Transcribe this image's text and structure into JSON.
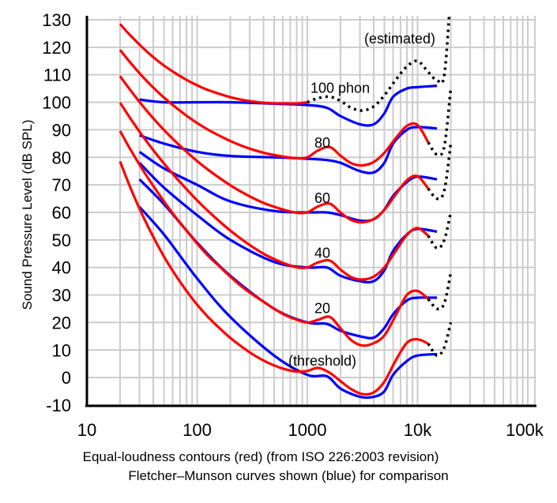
{
  "chart_data": {
    "type": "line",
    "caption_line1": "Equal-loudness contours (red) (from ISO 226:2003 revision)",
    "caption_line2": "Fletcher–Munson curves shown (blue) for comparison",
    "ylabel": "Sound Pressure Level (dB SPL)",
    "xscale": "log",
    "xlim": [
      10,
      115000
    ],
    "ylim": [
      -10,
      130
    ],
    "grid": true,
    "x_ticks": [
      {
        "value": 10,
        "label": "10"
      },
      {
        "value": 100,
        "label": "100"
      },
      {
        "value": 1000,
        "label": "1000"
      },
      {
        "value": 10000,
        "label": "10k"
      },
      {
        "value": 100000,
        "label": "100k"
      }
    ],
    "y_ticks": [
      "-10",
      "0",
      "10",
      "20",
      "30",
      "40",
      "50",
      "60",
      "70",
      "80",
      "90",
      "100",
      "110",
      "120",
      "130"
    ],
    "colors": {
      "iso": "#ff0000",
      "fletcher_munson": "#0000ff",
      "estimated": "#000000",
      "grid": "#cccccc"
    },
    "annotations": {
      "estimated": "(estimated)",
      "threshold": "(threshold)"
    },
    "iso_frequencies": [
      20,
      25,
      31.5,
      40,
      50,
      63,
      80,
      100,
      125,
      160,
      200,
      250,
      315,
      400,
      500,
      630,
      800,
      1000,
      1250,
      1600,
      2000,
      2500,
      3150,
      4000,
      5000,
      6300,
      8000,
      10000,
      12500
    ],
    "iso_series": [
      {
        "label": "",
        "values": [
          78.5,
          68.7,
          59.5,
          51.1,
          44.0,
          37.5,
          31.5,
          26.5,
          22.1,
          17.9,
          14.4,
          11.4,
          8.6,
          6.2,
          4.4,
          3.0,
          2.2,
          2.4,
          3.5,
          1.7,
          -1.3,
          -4.2,
          -6.0,
          -5.4,
          -1.5,
          6.0,
          12.6,
          13.9,
          12.3
        ],
        "tail": [
          8,
          11,
          20
        ]
      },
      {
        "label": "20",
        "values": [
          89.58,
          82.65,
          75.98,
          69.62,
          64.02,
          58.55,
          53.47,
          48.65,
          44.35,
          40.32,
          36.67,
          33.29,
          30.27,
          27.56,
          24.97,
          22.66,
          21.01,
          20.0,
          20.95,
          22.01,
          17.88,
          13.61,
          11.63,
          12.48,
          15.28,
          22.37,
          30.01,
          31.48,
          28.51
        ],
        "tail": [
          25,
          27,
          38
        ]
      },
      {
        "label": "40",
        "values": [
          99.85,
          93.94,
          88.17,
          82.63,
          77.78,
          73.08,
          68.48,
          64.37,
          60.59,
          56.7,
          53.41,
          50.4,
          47.58,
          44.98,
          43.05,
          41.34,
          40.06,
          40.01,
          41.82,
          42.51,
          39.23,
          36.51,
          35.61,
          36.65,
          40.01,
          45.83,
          51.8,
          54.28,
          51.49
        ],
        "tail": [
          47,
          50,
          60
        ]
      },
      {
        "label": "60",
        "values": [
          109.51,
          104.23,
          99.08,
          94.18,
          89.96,
          85.94,
          82.05,
          78.65,
          75.56,
          72.47,
          69.86,
          67.53,
          65.39,
          63.45,
          62.05,
          60.81,
          59.89,
          60.01,
          62.15,
          63.19,
          59.96,
          57.26,
          56.42,
          57.57,
          60.89,
          66.36,
          71.66,
          73.16,
          68.63
        ],
        "tail": [
          65,
          68,
          85
        ]
      },
      {
        "label": "80",
        "values": [
          118.99,
          114.23,
          109.65,
          105.34,
          101.72,
          98.36,
          95.17,
          92.48,
          90.09,
          87.82,
          85.92,
          84.31,
          82.89,
          81.68,
          80.86,
          80.17,
          79.67,
          80.01,
          82.48,
          83.74,
          80.59,
          77.88,
          77.07,
          78.31,
          81.62,
          86.81,
          91.41,
          91.74,
          85.41
        ],
        "tail": [
          81,
          84,
          105
        ]
      },
      {
        "label": "100 phon",
        "values": [
          128.41,
          124.15,
          120.11,
          116.38,
          113.35,
          110.65,
          108.16,
          106.17,
          104.48,
          103.03,
          101.85,
          100.97,
          100.3,
          99.83,
          99.62,
          99.6,
          99.59,
          100.0,
          101.5,
          102.0,
          100.5,
          98.0,
          97.0,
          98.5,
          102.5,
          108.0,
          113.0,
          115.0,
          111.0
        ],
        "estimated_from": 1000,
        "tail": [
          108,
          110,
          140
        ]
      }
    ],
    "tail_frequencies": [
      15000,
      17500,
      20000
    ],
    "fm_frequencies": [
      30,
      50,
      100,
      200,
      500,
      1000,
      1500,
      2000,
      3000,
      4000,
      5000,
      6000,
      8000,
      10000,
      15000
    ],
    "fm_series": [
      {
        "values": [
          62,
          52,
          36,
          22,
          8,
          1,
          0.5,
          -4,
          -7,
          -7,
          -5,
          1,
          6,
          8,
          8.5
        ]
      },
      {
        "values": [
          72,
          63,
          49,
          37,
          25,
          20,
          19.5,
          17,
          15,
          14.5,
          18,
          23,
          28,
          29,
          29
        ]
      },
      {
        "values": [
          78,
          69,
          59,
          50,
          42,
          40,
          40,
          37,
          35,
          35,
          39,
          46,
          52,
          54,
          53
        ]
      },
      {
        "values": [
          82,
          76,
          70,
          64,
          60.5,
          60,
          60,
          59,
          57,
          57.5,
          61,
          66,
          71,
          73,
          72
        ]
      },
      {
        "values": [
          88,
          85,
          82,
          80.5,
          80,
          79.5,
          79,
          78,
          75,
          74.5,
          78,
          85,
          90,
          91,
          90.5
        ]
      },
      {
        "values": [
          101,
          100,
          100,
          100,
          99.5,
          99,
          98,
          95,
          92,
          92,
          96,
          102,
          105,
          105.5,
          106
        ]
      }
    ]
  }
}
